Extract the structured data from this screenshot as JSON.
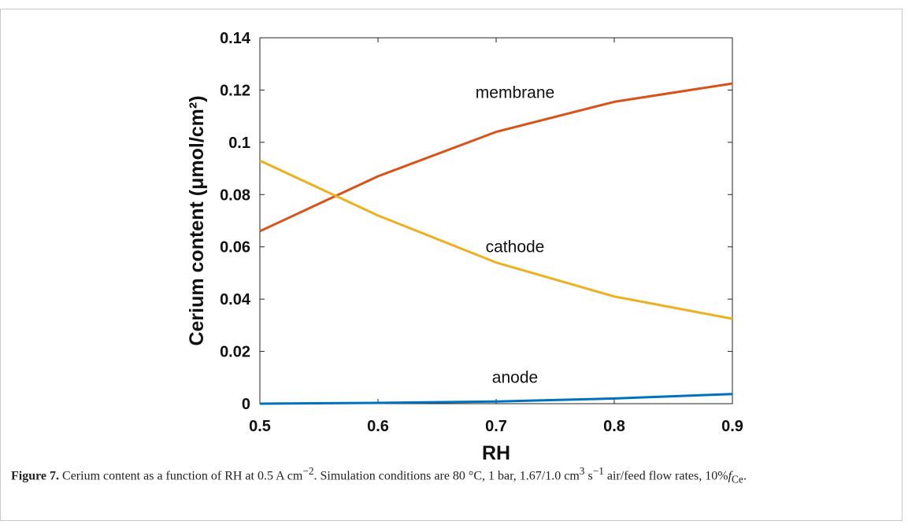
{
  "chart_data": {
    "type": "line",
    "xlabel": "RH",
    "ylabel": "Cerium content (μmol/cm²)",
    "xlim": [
      0.5,
      0.9
    ],
    "ylim": [
      0,
      0.14
    ],
    "x_ticks": [
      "0.5",
      "0.6",
      "0.7",
      "0.8",
      "0.9"
    ],
    "y_ticks": [
      "0",
      "0.02",
      "0.04",
      "0.06",
      "0.08",
      "0.1",
      "0.12",
      "0.14"
    ],
    "x": [
      0.5,
      0.6,
      0.7,
      0.8,
      0.9
    ],
    "grid": false,
    "series": [
      {
        "name": "membrane",
        "color": "#d95319",
        "values": [
          0.066,
          0.087,
          0.104,
          0.1155,
          0.1225
        ]
      },
      {
        "name": "cathode",
        "color": "#edb120",
        "values": [
          0.093,
          0.072,
          0.054,
          0.041,
          0.0325
        ]
      },
      {
        "name": "anode",
        "color": "#0072bd",
        "values": [
          0.0,
          0.0003,
          0.0008,
          0.002,
          0.0037
        ]
      }
    ]
  },
  "caption": {
    "label": "Figure 7.",
    "text_main": " Cerium content as a function of RH at 0.5 A cm",
    "sup1": "−2",
    "text_2": ". Simulation conditions are 80 °C, 1 bar, 1.67/1.0 cm",
    "sup2": "3",
    "text_3": " s",
    "sup3": "−1",
    "text_4": " air/feed flow rates, 10%",
    "f_symbol": "f",
    "f_sub": "Ce",
    "text_end": "."
  }
}
